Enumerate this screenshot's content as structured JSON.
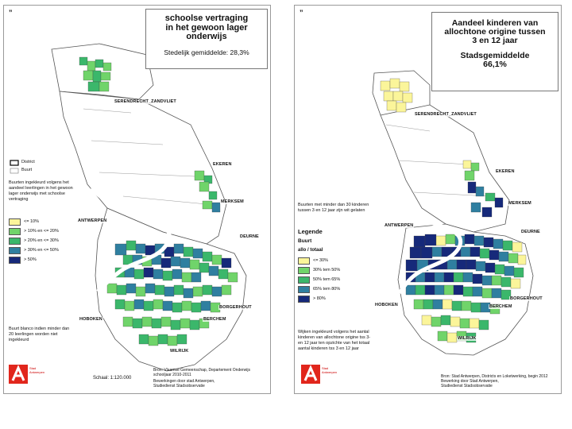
{
  "colors": {
    "yellow": "#fbf59a",
    "light_green": "#70d46a",
    "mid_green": "#3bb76b",
    "teal": "#2f7fa0",
    "blue": "#2a5da0",
    "navy": "#16297a",
    "outline": "#555555",
    "logo_red": "#e1261c"
  },
  "left": {
    "corner_mark": "”",
    "title_lines": [
      "schoolse vertraging",
      "in het gewoon lager",
      "onderwijs"
    ],
    "subtitle": "Stedelijk gemiddelde: 28,3%",
    "places": {
      "serendrecht": "SERENDRECHT_ZANDVLIET",
      "ekeren": "EKEREN",
      "merksem": "MERKSEM",
      "antwerpen": "ANTWERPEN",
      "deurne": "DEURNE",
      "borgerhout": "BORGERHOUT",
      "hoboken": "HOBOKEN",
      "berchem": "BERCHEM",
      "wilrijk": "WILRIJK"
    },
    "boundary_legend": [
      "District",
      "Buurt"
    ],
    "legend_intro": "Buurten ingekleurd volgens het aandeel leerlingen in het gewoon lager onderwijs met schoolse vertraging",
    "legend_items": [
      {
        "label": "<= 10%",
        "color": "#fbf59a"
      },
      {
        "label": "> 10% en <= 20%",
        "color": "#70d46a"
      },
      {
        "label": "> 20% en <= 30%",
        "color": "#3bb76b"
      },
      {
        "label": "> 30% en <= 50%",
        "color": "#2f7fa0"
      },
      {
        "label": "> 50%",
        "color": "#16297a"
      }
    ],
    "note": "Buurt blanco indien minder dan 20 leerlingen worden niet ingekleurd",
    "scale": "Schaal: 1:120.000",
    "logo_text": "Stad Antwerpen",
    "source_lines": [
      "Bron: Vlaamse Gemeenschap, Departement Onderwijs",
      "schooljaar 2010-2011",
      "Bewerkingen door stad Antwerpen,",
      "Studiedienst Stadsobservatie"
    ]
  },
  "right": {
    "corner_mark": "”",
    "title_lines": [
      "Aandeel kinderen van",
      "allochtone origine tussen",
      "3 en 12 jaar"
    ],
    "average_lines": [
      "Stadsgemiddelde",
      "66,1%"
    ],
    "places": {
      "serendrecht": "SERENDRECHT_ZANDVLIET",
      "ekeren": "EKEREN",
      "merksem": "MERKSEM",
      "antwerpen": "ANTWERPEN",
      "deurne": "DEURNE",
      "borgerhout": "BORGERHOUT",
      "hoboken": "HOBOKEN",
      "berchem": "BERCHEM",
      "wilrijk": "WILRIJK"
    },
    "legend_intro": "Buurten met minder dan 30 kinderen tussen 3 en 12 jaar zijn wit gelaten",
    "legend_title": "Legende",
    "legend_subtitle": "Buurt",
    "legend_subtitle2": "allo / totaal",
    "legend_items": [
      {
        "label": "<= 30%",
        "color": "#fbf59a"
      },
      {
        "label": "30% tem 50%",
        "color": "#70d46a"
      },
      {
        "label": "50% tem 65%",
        "color": "#3bb76b"
      },
      {
        "label": "65% tem 80%",
        "color": "#2f7fa0"
      },
      {
        "label": "> 80%",
        "color": "#16297a"
      }
    ],
    "note": "Wijken ingekleurd volgens het aantal kinderen van allochtone origine tss 3-en 12 jaar ten opzichte van het totaal aantal kinderen tss 3 en 12 jaar",
    "logo_text": "Stad Antwerpen",
    "source_lines": [
      "Bron: Stad Antwerpen, Districts en Loketwerking, begin 2012",
      "Bewerking door Stad Antwerpen,",
      "Studiedienst Stadsobservatie"
    ]
  }
}
